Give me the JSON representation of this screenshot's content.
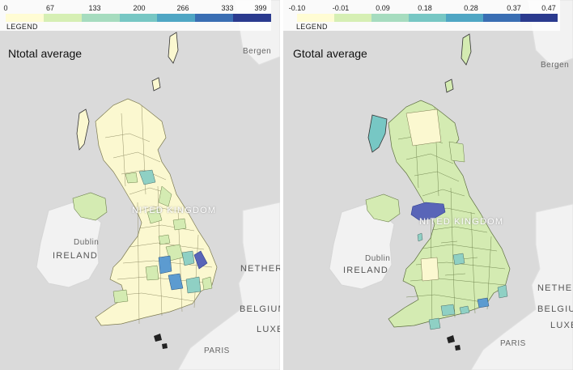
{
  "maps": [
    {
      "title": "Ntotal average",
      "legend": {
        "title": "LEGEND",
        "ticks": [
          "0",
          "67",
          "133",
          "200",
          "266",
          "333",
          "399"
        ],
        "colors": [
          "#fffcd4",
          "#d6efb4",
          "#a6dcbf",
          "#77c7c4",
          "#4fa6c4",
          "#3a6eb3",
          "#2b3b8f"
        ]
      },
      "place_labels": {
        "bergen": "Bergen",
        "dublin": "Dublin",
        "ireland": "IRELAND",
        "united_kingdom": "NITED KINGDOM",
        "netherlands": "NETHERLAN",
        "belgium": "BELGIUM",
        "luxembourg": "LUXEM",
        "paris": "PARIS"
      },
      "colors": {
        "base": "#fbf8d0",
        "light_green": "#d4ebb2",
        "teal": "#8fd0c4",
        "blue": "#5c9bd0",
        "purple": "#5965b8"
      }
    },
    {
      "title": "Gtotal average",
      "legend": {
        "title": "LEGEND",
        "ticks": [
          "-0.10",
          "-0.01",
          "0.09",
          "0.18",
          "0.28",
          "0.37",
          "0.47"
        ],
        "colors": [
          "#fffcd4",
          "#d6efb4",
          "#a6dcbf",
          "#77c7c4",
          "#4fa6c4",
          "#3a6eb3",
          "#2b3b8f"
        ]
      },
      "place_labels": {
        "bergen": "Bergen",
        "dublin": "Dublin",
        "ireland": "IRELAND",
        "united_kingdom": "NITED KINGDOM",
        "netherlands": "NETHERLAN",
        "belgium": "BELGIUM",
        "luxembourg": "LUXEM",
        "paris": "PARIS"
      },
      "colors": {
        "base": "#d4ebb2",
        "pale": "#fbf8d0",
        "teal": "#8fd0c4",
        "blue": "#5c9bd0",
        "purple": "#5965b8"
      }
    }
  ]
}
